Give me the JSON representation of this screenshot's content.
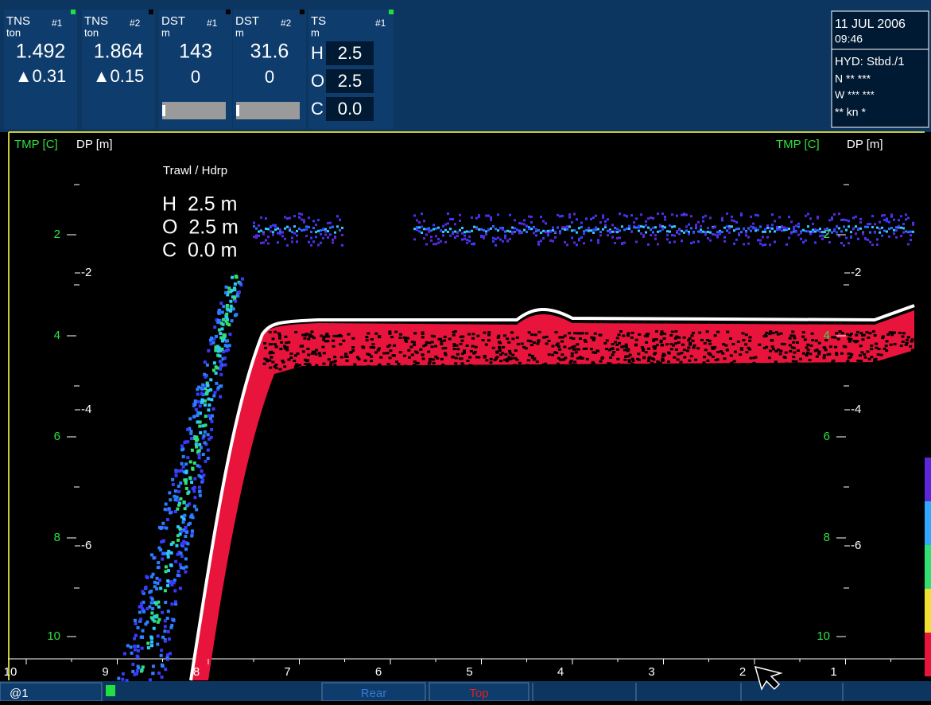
{
  "header": {
    "panels": [
      {
        "label": "TNS",
        "num": "#1",
        "unit": "ton",
        "value": "1.492",
        "delta": "▲0.31"
      },
      {
        "label": "TNS",
        "num": "#2",
        "unit": "ton",
        "value": "1.864",
        "delta": "▲0.15"
      },
      {
        "label": "DST",
        "num": "#1",
        "unit": "m",
        "value": "143",
        "delta": "0"
      },
      {
        "label": "DST",
        "num": "#2",
        "unit": "m",
        "value": "31.6",
        "delta": "0"
      }
    ],
    "ts": {
      "label": "TS",
      "num": "#1",
      "unit": "m",
      "rows": [
        [
          "H",
          "2.5"
        ],
        [
          "O",
          "2.5"
        ],
        [
          "C",
          "0.0"
        ]
      ]
    },
    "info": {
      "date": "11 JUL 2006",
      "time": "09:46",
      "hyd": "HYD: Stbd./1",
      "lat": "N ** ***",
      "lon": "W *** ***",
      "speed": "** kn *"
    }
  },
  "display": {
    "tmp_label": "TMP [C]",
    "dp_label": "DP [m]",
    "trawl": {
      "title": "Trawl / Hdrp",
      "lines": [
        "H  2.5 m",
        "O  2.5 m",
        "C  0.0 m"
      ]
    },
    "tmp_ticks": [
      "2",
      "4",
      "6",
      "8",
      "10"
    ],
    "dp_ticks": [
      "-2",
      "-4",
      "-6"
    ],
    "x_ticks": [
      "10",
      "9",
      "8",
      "7",
      "6",
      "5",
      "4",
      "3",
      "2",
      "1"
    ]
  },
  "footer": {
    "tabs": [
      "@1",
      "Rear",
      "Top"
    ]
  }
}
